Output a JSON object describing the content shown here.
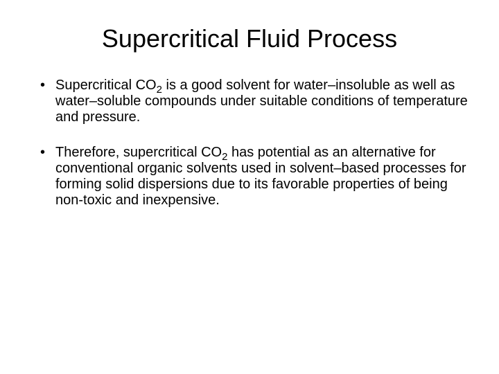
{
  "slide": {
    "title": "Supercritical Fluid Process",
    "bullets": [
      {
        "pre1": "Supercritical CO",
        "sub1": "2",
        "post1": " is a good solvent for water–insoluble as well as water–soluble compounds under suitable conditions of temperature and pressure."
      },
      {
        "pre1": "Therefore, supercritical CO",
        "sub1": "2",
        "post1": " has potential as an alternative for conventional organic solvents used in solvent–based processes for forming solid dispersions due to its favorable properties of being non-toxic and inexpensive."
      }
    ],
    "styling": {
      "background_color": "#ffffff",
      "text_color": "#000000",
      "title_fontsize": 36,
      "body_fontsize": 20,
      "font_family": "Arial"
    }
  }
}
